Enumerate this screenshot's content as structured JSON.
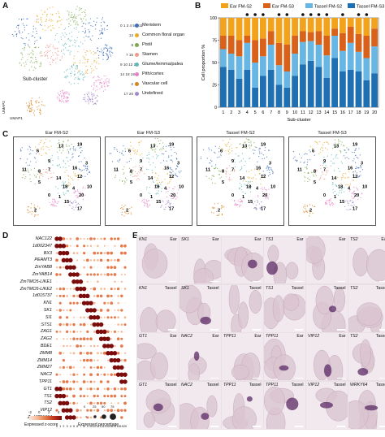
{
  "panels": {
    "a": "A",
    "b": "B",
    "c": "C",
    "d": "D",
    "e": "E"
  },
  "panel_a": {
    "axis_label_y": "UMAP2",
    "axis_label_x": "UMAP1",
    "subcluster_label": "Sub-cluster",
    "legend": [
      {
        "nums": "0 1 3 4 5 6 11",
        "name": "Meristem",
        "color": "#3f6fb5"
      },
      {
        "nums": "13",
        "name": "Common floral organ",
        "color": "#e7ac2b"
      },
      {
        "nums": "8",
        "name": "Pistil",
        "color": "#7da84f"
      },
      {
        "nums": "7 15",
        "name": "Stamen",
        "color": "#f09a8e"
      },
      {
        "nums": "9 10 12 16",
        "name": "Glume/lemma/palea",
        "color": "#5fb7b8"
      },
      {
        "nums": "14 18 19",
        "name": "Pith/cortex",
        "color": "#e77fc7"
      },
      {
        "nums": "2",
        "name": "Vascular cell",
        "color": "#d4851f"
      },
      {
        "nums": "17 20",
        "name": "Undefined",
        "color": "#a389c9"
      }
    ]
  },
  "chart_data": {
    "type": "bar",
    "stacked": true,
    "title": "",
    "xlabel": "Sub-cluster",
    "ylabel": "Cell proportion %",
    "ylim": [
      0,
      100
    ],
    "yticks": [
      0,
      25,
      50,
      75,
      100
    ],
    "categories": [
      "1",
      "2",
      "3",
      "4",
      "5",
      "6",
      "7",
      "8",
      "9",
      "10",
      "11",
      "12",
      "13",
      "14",
      "15",
      "16",
      "17",
      "18",
      "19",
      "20"
    ],
    "marked": [
      "4",
      "5",
      "6",
      "8",
      "9",
      "11",
      "12",
      "13",
      "14",
      "16",
      "18",
      "19"
    ],
    "series": [
      {
        "name": "Tassel FM-S3",
        "color": "#1f6fb3",
        "values": [
          45,
          42,
          32,
          42,
          22,
          35,
          42,
          25,
          22,
          35,
          48,
          52,
          45,
          33,
          55,
          40,
          42,
          40,
          30,
          38
        ]
      },
      {
        "name": "Tassel FM-S2",
        "color": "#67b6e3",
        "values": [
          20,
          18,
          25,
          30,
          28,
          22,
          28,
          22,
          18,
          25,
          25,
          22,
          25,
          25,
          25,
          23,
          30,
          22,
          25,
          30
        ]
      },
      {
        "name": "Ear FM-S3",
        "color": "#d9611a",
        "values": [
          15,
          20,
          18,
          8,
          25,
          20,
          15,
          25,
          30,
          20,
          12,
          10,
          15,
          22,
          8,
          20,
          18,
          20,
          25,
          20
        ]
      },
      {
        "name": "Ear FM-S2",
        "color": "#f3a21c",
        "values": [
          20,
          20,
          25,
          20,
          25,
          23,
          15,
          28,
          30,
          20,
          15,
          16,
          15,
          20,
          12,
          17,
          10,
          18,
          20,
          12
        ]
      }
    ],
    "legend_order": [
      "Ear FM-S2",
      "Ear FM-S3",
      "Tassel FM-S2",
      "Tassel FM-S3"
    ]
  },
  "panel_c": {
    "titles": [
      "Ear FM-S2",
      "Ear FM-S3",
      "Tassel FM-S2",
      "Tassel FM-S3"
    ],
    "cluster_numbers": [
      "6",
      "13",
      "19",
      "11",
      "8",
      "7",
      "14",
      "9",
      "18",
      "3",
      "16",
      "12",
      "10",
      "5",
      "0",
      "1",
      "4",
      "15",
      "20",
      "17",
      "2"
    ]
  },
  "panel_d": {
    "genes": [
      "NAC122",
      "1d002347",
      "BX3",
      "PEAMT3",
      "ZmYAB8",
      "ZmYAB14",
      "ZmTMO5-LIKE1",
      "ZmTMO5-LIKE2",
      "1d015737",
      "KN1",
      "SK1",
      "SI1",
      "STS1",
      "ZAG1",
      "ZAG2",
      "BDE1",
      "ZMM8",
      "ZMM14",
      "ZMM27",
      "NAC2",
      "TPP11",
      "GT1",
      "TS1",
      "TS2",
      "VIP12",
      "ZmWRKY64"
    ],
    "columns": [
      "0",
      "1",
      "2",
      "3",
      "4",
      "5",
      "6",
      "7",
      "8",
      "9",
      "10",
      "11",
      "12",
      "13",
      "14",
      "15",
      "16",
      "17",
      "18",
      "19",
      "20"
    ],
    "colorbar_label": "Expressed z-score",
    "colorbar_ticks": [
      "-2",
      "0",
      "2",
      "4"
    ],
    "size_label": "Expressed percentage",
    "size_ticks": [
      "0",
      "25",
      "50",
      "75"
    ]
  },
  "panel_e": {
    "rows": [
      [
        {
          "gene": "KN1",
          "tissue": "Ear"
        },
        {
          "gene": "SK1",
          "tissue": "Ear"
        },
        {
          "gene": "",
          "tissue": "Ear"
        },
        {
          "gene": "TS1",
          "tissue": "Ear"
        },
        {
          "gene": "",
          "tissue": "Ear"
        },
        {
          "gene": "TS2",
          "tissue": "Ear"
        }
      ],
      [
        {
          "gene": "KN1",
          "tissue": "Tassel"
        },
        {
          "gene": "SK1",
          "tissue": "Tassel"
        },
        {
          "gene": "",
          "tissue": "Tassel"
        },
        {
          "gene": "TS1",
          "tissue": "Tassel"
        },
        {
          "gene": "",
          "tissue": "Tassel"
        },
        {
          "gene": "TS2",
          "tissue": "Tassel"
        }
      ],
      [
        {
          "gene": "GT1",
          "tissue": "Ear"
        },
        {
          "gene": "NAC2",
          "tissue": "Ear"
        },
        {
          "gene": "TPP11",
          "tissue": "Ear"
        },
        {
          "gene": "TPP11",
          "tissue": "Ear"
        },
        {
          "gene": "VIP12",
          "tissue": "Ear"
        },
        {
          "gene": "TS2",
          "tissue": "Tassel"
        }
      ],
      [
        {
          "gene": "GT1",
          "tissue": "Tassel"
        },
        {
          "gene": "NAC2",
          "tissue": "Tassel"
        },
        {
          "gene": "TPP11",
          "tissue": "Tassel"
        },
        {
          "gene": "TPP11",
          "tissue": "Tassel"
        },
        {
          "gene": "VIP12",
          "tissue": "Tassel"
        },
        {
          "gene": "WRKY64",
          "tissue": "Tassel"
        }
      ]
    ]
  }
}
